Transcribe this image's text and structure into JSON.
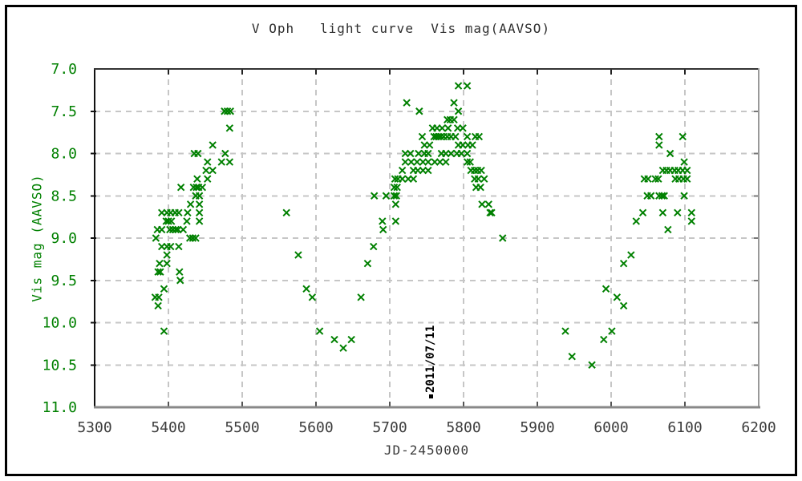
{
  "title": "V Oph   light curve  Vis mag(AAVSO)",
  "annotation": {
    "label": "2011/07/11",
    "jd": 5755,
    "marker": "black-square"
  },
  "colors": {
    "marker": "#008000",
    "y_tick_text": "#008000",
    "x_tick_text": "#3c3c3c",
    "grid": "#c6c6c6",
    "annotation_text": "#000000"
  },
  "chart_data": {
    "type": "scatter",
    "title": "V Oph   light curve  Vis mag(AAVSO)",
    "xlabel": "JD-2450000",
    "ylabel": "Vis mag (AAVSO)",
    "xlim": [
      5300,
      6200
    ],
    "ylim": [
      7.0,
      11.0
    ],
    "y_axis_inverted": true,
    "x_ticks": [
      5300,
      5400,
      5500,
      5600,
      5700,
      5800,
      5900,
      6000,
      6100,
      6200
    ],
    "y_ticks": [
      7.0,
      7.5,
      8.0,
      8.5,
      9.0,
      9.5,
      10.0,
      10.5,
      11.0
    ],
    "grid": "dashed",
    "legend": "none",
    "marker": "x",
    "marker_color": "#008000",
    "annotation": {
      "text": "2011/07/11",
      "jd": 5755
    },
    "points": [
      [
        5394,
        10.1
      ],
      [
        5386,
        9.8
      ],
      [
        5382,
        9.7
      ],
      [
        5387,
        9.7
      ],
      [
        5394,
        9.6
      ],
      [
        5416,
        9.5
      ],
      [
        5386,
        9.4
      ],
      [
        5389,
        9.4
      ],
      [
        5415,
        9.4
      ],
      [
        5388,
        9.3
      ],
      [
        5398,
        9.3
      ],
      [
        5398,
        9.2
      ],
      [
        5391,
        9.1
      ],
      [
        5398,
        9.1
      ],
      [
        5403,
        9.1
      ],
      [
        5414,
        9.1
      ],
      [
        5383,
        9.0
      ],
      [
        5429,
        9.0
      ],
      [
        5433,
        9.0
      ],
      [
        5437,
        9.0
      ],
      [
        5385,
        8.9
      ],
      [
        5391,
        8.9
      ],
      [
        5402,
        8.9
      ],
      [
        5406,
        8.9
      ],
      [
        5410,
        8.9
      ],
      [
        5413,
        8.9
      ],
      [
        5420,
        8.9
      ],
      [
        5397,
        8.8
      ],
      [
        5400,
        8.8
      ],
      [
        5404,
        8.8
      ],
      [
        5425,
        8.8
      ],
      [
        5442,
        8.8
      ],
      [
        5391,
        8.7
      ],
      [
        5398,
        8.7
      ],
      [
        5403,
        8.7
      ],
      [
        5409,
        8.7
      ],
      [
        5414,
        8.7
      ],
      [
        5426,
        8.7
      ],
      [
        5442,
        8.7
      ],
      [
        5430,
        8.6
      ],
      [
        5442,
        8.6
      ],
      [
        5437,
        8.5
      ],
      [
        5442,
        8.5
      ],
      [
        5417,
        8.4
      ],
      [
        5434,
        8.4
      ],
      [
        5438,
        8.4
      ],
      [
        5441,
        8.4
      ],
      [
        5446,
        8.4
      ],
      [
        5439,
        8.3
      ],
      [
        5453,
        8.3
      ],
      [
        5451,
        8.2
      ],
      [
        5460,
        8.2
      ],
      [
        5453,
        8.1
      ],
      [
        5472,
        8.1
      ],
      [
        5483,
        8.1
      ],
      [
        5435,
        8.0
      ],
      [
        5440,
        8.0
      ],
      [
        5477,
        8.0
      ],
      [
        5460,
        7.9
      ],
      [
        5483,
        7.7
      ],
      [
        5476,
        7.5
      ],
      [
        5480,
        7.5
      ],
      [
        5484,
        7.5
      ],
      [
        5560,
        8.7
      ],
      [
        5576,
        9.2
      ],
      [
        5587,
        9.6
      ],
      [
        5595,
        9.7
      ],
      [
        5605,
        10.1
      ],
      [
        5625,
        10.2
      ],
      [
        5637,
        10.3
      ],
      [
        5648,
        10.2
      ],
      [
        5661,
        9.7
      ],
      [
        5670,
        9.3
      ],
      [
        5678,
        9.1
      ],
      [
        5690,
        8.8
      ],
      [
        5691,
        8.9
      ],
      [
        5708,
        8.8
      ],
      [
        5679,
        8.5
      ],
      [
        5695,
        8.5
      ],
      [
        5706,
        8.5
      ],
      [
        5709,
        8.5
      ],
      [
        5708,
        8.6
      ],
      [
        5706,
        8.4
      ],
      [
        5710,
        8.4
      ],
      [
        5707,
        8.3
      ],
      [
        5711,
        8.3
      ],
      [
        5717,
        8.3
      ],
      [
        5725,
        8.3
      ],
      [
        5732,
        8.3
      ],
      [
        5717,
        8.2
      ],
      [
        5732,
        8.2
      ],
      [
        5738,
        8.2
      ],
      [
        5745,
        8.2
      ],
      [
        5752,
        8.2
      ],
      [
        5721,
        8.1
      ],
      [
        5729,
        8.1
      ],
      [
        5737,
        8.1
      ],
      [
        5745,
        8.1
      ],
      [
        5752,
        8.1
      ],
      [
        5761,
        8.1
      ],
      [
        5768,
        8.1
      ],
      [
        5776,
        8.1
      ],
      [
        5721,
        8.0
      ],
      [
        5728,
        8.0
      ],
      [
        5739,
        8.0
      ],
      [
        5747,
        8.0
      ],
      [
        5752,
        8.0
      ],
      [
        5770,
        8.0
      ],
      [
        5776,
        8.0
      ],
      [
        5783,
        8.0
      ],
      [
        5791,
        8.0
      ],
      [
        5797,
        8.0
      ],
      [
        5805,
        8.0
      ],
      [
        5747,
        7.9
      ],
      [
        5754,
        7.9
      ],
      [
        5793,
        7.9
      ],
      [
        5799,
        7.9
      ],
      [
        5806,
        7.9
      ],
      [
        5812,
        7.9
      ],
      [
        5744,
        7.8
      ],
      [
        5760,
        7.8
      ],
      [
        5763,
        7.8
      ],
      [
        5766,
        7.8
      ],
      [
        5769,
        7.8
      ],
      [
        5773,
        7.8
      ],
      [
        5778,
        7.8
      ],
      [
        5783,
        7.8
      ],
      [
        5789,
        7.8
      ],
      [
        5805,
        7.8
      ],
      [
        5816,
        7.8
      ],
      [
        5821,
        7.8
      ],
      [
        5758,
        7.7
      ],
      [
        5764,
        7.7
      ],
      [
        5771,
        7.7
      ],
      [
        5779,
        7.7
      ],
      [
        5792,
        7.7
      ],
      [
        5799,
        7.7
      ],
      [
        5778,
        7.6
      ],
      [
        5782,
        7.6
      ],
      [
        5787,
        7.6
      ],
      [
        5740,
        7.5
      ],
      [
        5793,
        7.5
      ],
      [
        5723,
        7.4
      ],
      [
        5787,
        7.4
      ],
      [
        5793,
        7.2
      ],
      [
        5805,
        7.2
      ],
      [
        5805,
        8.1
      ],
      [
        5809,
        8.1
      ],
      [
        5810,
        8.2
      ],
      [
        5815,
        8.2
      ],
      [
        5819,
        8.2
      ],
      [
        5824,
        8.2
      ],
      [
        5815,
        8.3
      ],
      [
        5820,
        8.3
      ],
      [
        5828,
        8.3
      ],
      [
        5817,
        8.4
      ],
      [
        5823,
        8.4
      ],
      [
        5825,
        8.6
      ],
      [
        5834,
        8.6
      ],
      [
        5836,
        8.7
      ],
      [
        5838,
        8.7
      ],
      [
        5853,
        9.0
      ],
      [
        5938,
        10.1
      ],
      [
        5947,
        10.4
      ],
      [
        5974,
        10.5
      ],
      [
        5990,
        10.2
      ],
      [
        5993,
        9.6
      ],
      [
        6001,
        10.1
      ],
      [
        6008,
        9.7
      ],
      [
        6017,
        9.8
      ],
      [
        6017,
        9.3
      ],
      [
        6027,
        9.2
      ],
      [
        6034,
        8.8
      ],
      [
        6109,
        8.8
      ],
      [
        6077,
        8.9
      ],
      [
        6043,
        8.7
      ],
      [
        6070,
        8.7
      ],
      [
        6090,
        8.7
      ],
      [
        6109,
        8.7
      ],
      [
        6049,
        8.5
      ],
      [
        6054,
        8.5
      ],
      [
        6065,
        8.5
      ],
      [
        6069,
        8.5
      ],
      [
        6072,
        8.5
      ],
      [
        6099,
        8.5
      ],
      [
        6045,
        8.3
      ],
      [
        6050,
        8.3
      ],
      [
        6060,
        8.3
      ],
      [
        6064,
        8.3
      ],
      [
        6087,
        8.3
      ],
      [
        6092,
        8.3
      ],
      [
        6098,
        8.3
      ],
      [
        6103,
        8.3
      ],
      [
        6070,
        8.2
      ],
      [
        6075,
        8.2
      ],
      [
        6080,
        8.2
      ],
      [
        6086,
        8.2
      ],
      [
        6091,
        8.2
      ],
      [
        6097,
        8.2
      ],
      [
        6103,
        8.2
      ],
      [
        6099,
        8.1
      ],
      [
        6080,
        8.0
      ],
      [
        6065,
        7.9
      ],
      [
        6065,
        7.8
      ],
      [
        6097,
        7.8
      ]
    ]
  }
}
